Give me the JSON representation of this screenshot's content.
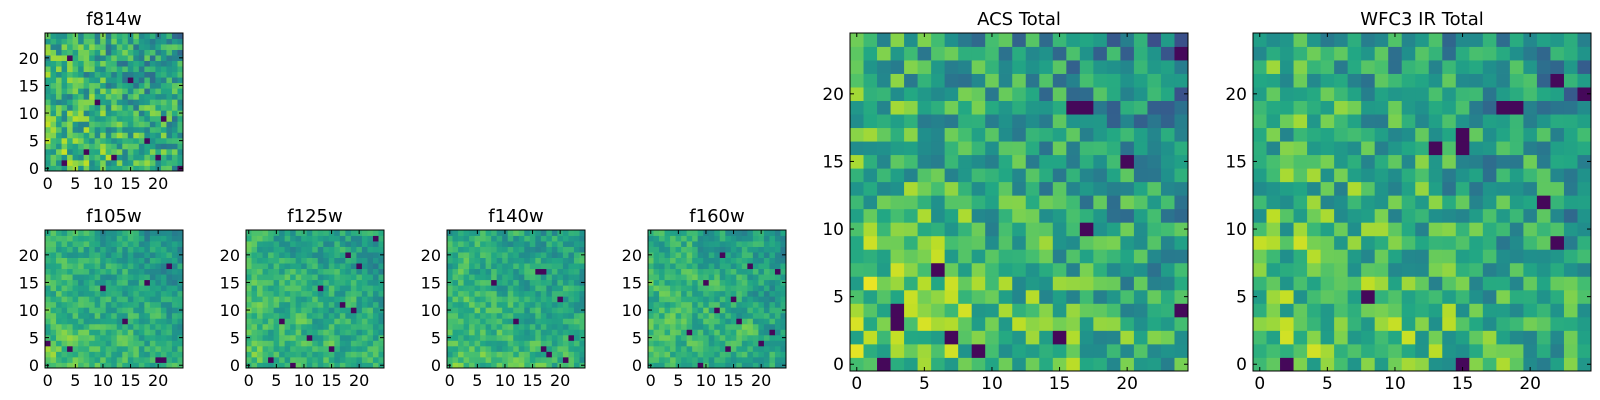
{
  "figure": {
    "panels": [
      {
        "key": "f814w",
        "title": "f814w",
        "xticks": [
          "0",
          "5",
          "10",
          "15",
          "20"
        ],
        "yticks": [
          "0",
          "5",
          "10",
          "15",
          "20"
        ]
      },
      {
        "key": "f105w",
        "title": "f105w",
        "xticks": [
          "0",
          "5",
          "10",
          "15",
          "20"
        ],
        "yticks": [
          "0",
          "5",
          "10",
          "15",
          "20"
        ]
      },
      {
        "key": "f125w",
        "title": "f125w",
        "xticks": [
          "0",
          "5",
          "10",
          "15",
          "20"
        ],
        "yticks": [
          "0",
          "5",
          "10",
          "15",
          "20"
        ]
      },
      {
        "key": "f140w",
        "title": "f140w",
        "xticks": [
          "0",
          "5",
          "10",
          "15",
          "20"
        ],
        "yticks": [
          "0",
          "5",
          "10",
          "15",
          "20"
        ]
      },
      {
        "key": "f160w",
        "title": "f160w",
        "xticks": [
          "0",
          "5",
          "10",
          "15",
          "20"
        ],
        "yticks": [
          "0",
          "5",
          "10",
          "15",
          "20"
        ]
      },
      {
        "key": "acs_total",
        "title": "ACS Total",
        "xticks": [
          "0",
          "5",
          "10",
          "15",
          "20"
        ],
        "yticks": [
          "0",
          "5",
          "10",
          "15",
          "20"
        ]
      },
      {
        "key": "wfc3_ir_total",
        "title": "WFC3 IR Total",
        "xticks": [
          "0",
          "5",
          "10",
          "15",
          "20"
        ],
        "yticks": [
          "0",
          "5",
          "10",
          "15",
          "20"
        ]
      }
    ]
  },
  "chart_data": [
    {
      "type": "heatmap",
      "title": "f814w",
      "colormap": "viridis",
      "grid_size": [
        25,
        25
      ],
      "xlim": [
        0,
        25
      ],
      "ylim": [
        0,
        25
      ],
      "pattern": "noise",
      "seed": 11,
      "bias": 0.1,
      "dark_cells": [
        [
          3,
          1
        ],
        [
          7,
          3
        ],
        [
          12,
          2
        ],
        [
          18,
          5
        ],
        [
          21,
          9
        ],
        [
          9,
          12
        ],
        [
          15,
          16
        ],
        [
          4,
          20
        ],
        [
          20,
          2
        ],
        [
          24,
          0
        ]
      ],
      "values_note": "random per-pixel noise image"
    },
    {
      "type": "heatmap",
      "title": "f105w",
      "colormap": "viridis",
      "grid_size": [
        25,
        25
      ],
      "xlim": [
        0,
        25
      ],
      "ylim": [
        0,
        25
      ],
      "pattern": "smooth",
      "seed": 23,
      "bias": 0.12,
      "dark_cells": [
        [
          0,
          4
        ],
        [
          4,
          3
        ],
        [
          20,
          1
        ],
        [
          21,
          1
        ],
        [
          14,
          8
        ],
        [
          10,
          14
        ],
        [
          18,
          15
        ],
        [
          22,
          18
        ]
      ],
      "values_note": "smoothed noise image"
    },
    {
      "type": "heatmap",
      "title": "f125w",
      "colormap": "viridis",
      "grid_size": [
        25,
        25
      ],
      "xlim": [
        0,
        25
      ],
      "ylim": [
        0,
        25
      ],
      "pattern": "smooth",
      "seed": 37,
      "bias": 0.08,
      "dark_cells": [
        [
          4,
          1
        ],
        [
          8,
          0
        ],
        [
          15,
          3
        ],
        [
          19,
          10
        ],
        [
          17,
          11
        ],
        [
          13,
          14
        ],
        [
          20,
          18
        ],
        [
          18,
          20
        ],
        [
          23,
          23
        ],
        [
          11,
          5
        ],
        [
          6,
          8
        ]
      ],
      "values_note": "smoothed noise image"
    },
    {
      "type": "heatmap",
      "title": "f140w",
      "colormap": "viridis",
      "grid_size": [
        25,
        25
      ],
      "xlim": [
        0,
        25
      ],
      "ylim": [
        0,
        25
      ],
      "pattern": "smooth",
      "seed": 41,
      "bias": 0.1,
      "dark_cells": [
        [
          17,
          3
        ],
        [
          18,
          2
        ],
        [
          21,
          1
        ],
        [
          22,
          5
        ],
        [
          16,
          17
        ],
        [
          17,
          17
        ],
        [
          20,
          12
        ],
        [
          12,
          8
        ],
        [
          8,
          15
        ]
      ],
      "values_note": "smoothed noise image"
    },
    {
      "type": "heatmap",
      "title": "f160w",
      "colormap": "viridis",
      "grid_size": [
        25,
        25
      ],
      "xlim": [
        0,
        25
      ],
      "ylim": [
        0,
        25
      ],
      "pattern": "smooth",
      "seed": 53,
      "bias": 0.06,
      "dark_cells": [
        [
          9,
          0
        ],
        [
          14,
          3
        ],
        [
          20,
          4
        ],
        [
          22,
          6
        ],
        [
          12,
          10
        ],
        [
          15,
          12
        ],
        [
          18,
          18
        ],
        [
          13,
          20
        ],
        [
          23,
          17
        ],
        [
          16,
          8
        ],
        [
          7,
          6
        ],
        [
          10,
          15
        ]
      ],
      "values_note": "smoothed noise image"
    },
    {
      "type": "heatmap",
      "title": "ACS Total",
      "colormap": "viridis",
      "grid_size": [
        25,
        25
      ],
      "xlim": [
        0,
        25
      ],
      "ylim": [
        0,
        25
      ],
      "pattern": "noise",
      "seed": 67,
      "bias": 0.18,
      "dark_cells": [
        [
          3,
          3
        ],
        [
          3,
          4
        ],
        [
          6,
          7
        ],
        [
          7,
          2
        ],
        [
          15,
          2
        ],
        [
          17,
          10
        ],
        [
          17,
          19
        ],
        [
          20,
          15
        ],
        [
          24,
          4
        ],
        [
          24,
          23
        ],
        [
          2,
          0
        ],
        [
          9,
          1
        ],
        [
          16,
          19
        ]
      ],
      "values_note": "blocky noise image"
    },
    {
      "type": "heatmap",
      "title": "WFC3 IR Total",
      "colormap": "viridis",
      "grid_size": [
        25,
        25
      ],
      "xlim": [
        0,
        25
      ],
      "ylim": [
        0,
        25
      ],
      "pattern": "noise",
      "seed": 79,
      "bias": 0.16,
      "dark_cells": [
        [
          15,
          0
        ],
        [
          2,
          0
        ],
        [
          15,
          17
        ],
        [
          15,
          16
        ],
        [
          13,
          16
        ],
        [
          18,
          19
        ],
        [
          19,
          19
        ],
        [
          21,
          12
        ],
        [
          22,
          9
        ],
        [
          24,
          20
        ],
        [
          22,
          21
        ],
        [
          8,
          5
        ]
      ],
      "values_note": "blocky noise image"
    }
  ]
}
